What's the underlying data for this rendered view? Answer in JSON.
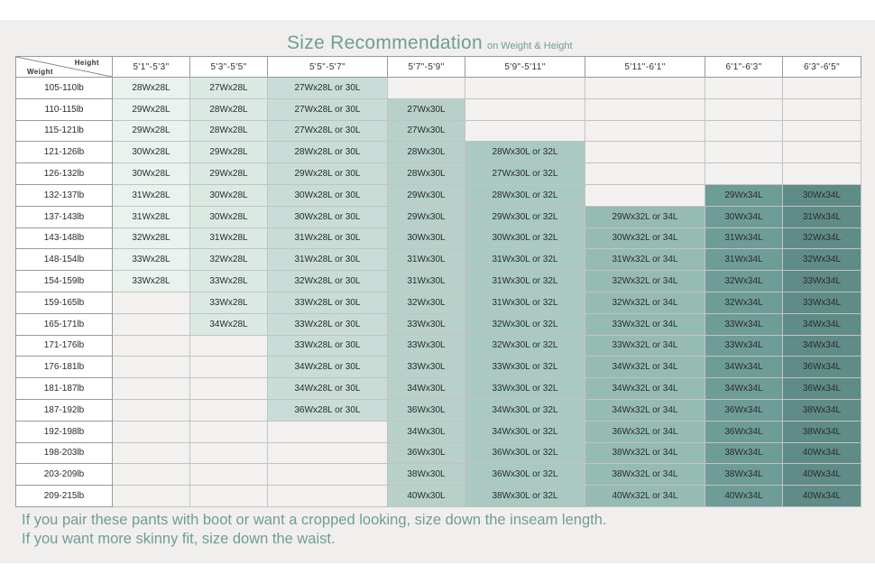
{
  "title": "Size Recommendation",
  "subtitle": "on Weight & Height",
  "corner": {
    "height_label": "Height",
    "weight_label": "Weight"
  },
  "heights": [
    "5'1\"-5'3\"",
    "5'3\"-5'5\"",
    "5'5\"-5'7\"",
    "5'7\"-5'9\"",
    "5'9\"-5'11\"",
    "5'11\"-6'1\"",
    "6'1\"-6'3\"",
    "6'3\"-6'5\""
  ],
  "rows": [
    {
      "weight": "105-110lb",
      "sizes": [
        "28Wx28L",
        "27Wx28L",
        "27Wx28L or 30L",
        "",
        "",
        "",
        "",
        ""
      ]
    },
    {
      "weight": "110-115lb",
      "sizes": [
        "29Wx28L",
        "28Wx28L",
        "27Wx28L or 30L",
        "27Wx30L",
        "",
        "",
        "",
        ""
      ]
    },
    {
      "weight": "115-121lb",
      "sizes": [
        "29Wx28L",
        "28Wx28L",
        "27Wx28L or 30L",
        "27Wx30L",
        "",
        "",
        "",
        ""
      ]
    },
    {
      "weight": "121-126lb",
      "sizes": [
        "30Wx28L",
        "29Wx28L",
        "28Wx28L or 30L",
        "28Wx30L",
        "28Wx30L or 32L",
        "",
        "",
        ""
      ]
    },
    {
      "weight": "126-132lb",
      "sizes": [
        "30Wx28L",
        "29Wx28L",
        "29Wx28L or 30L",
        "28Wx30L",
        "27Wx30L or 32L",
        "",
        "",
        ""
      ]
    },
    {
      "weight": "132-137lb",
      "sizes": [
        "31Wx28L",
        "30Wx28L",
        "30Wx28L or 30L",
        "29Wx30L",
        "28Wx30L or 32L",
        "",
        "29Wx34L",
        "30Wx34L"
      ]
    },
    {
      "weight": "137-143lb",
      "sizes": [
        "31Wx28L",
        "30Wx28L",
        "30Wx28L or 30L",
        "29Wx30L",
        "29Wx30L or 32L",
        "29Wx32L or 34L",
        "30Wx34L",
        "31Wx34L"
      ]
    },
    {
      "weight": "143-148lb",
      "sizes": [
        "32Wx28L",
        "31Wx28L",
        "31Wx28L or 30L",
        "30Wx30L",
        "30Wx30L or 32L",
        "30Wx32L or 34L",
        "31Wx34L",
        "32Wx34L"
      ]
    },
    {
      "weight": "148-154lb",
      "sizes": [
        "33Wx28L",
        "32Wx28L",
        "31Wx28L or 30L",
        "31Wx30L",
        "31Wx30L or 32L",
        "31Wx32L or 34L",
        "31Wx34L",
        "32Wx34L"
      ]
    },
    {
      "weight": "154-159lb",
      "sizes": [
        "33Wx28L",
        "33Wx28L",
        "32Wx28L or 30L",
        "31Wx30L",
        "31Wx30L or 32L",
        "32Wx32L or 34L",
        "32Wx34L",
        "33Wx34L"
      ]
    },
    {
      "weight": "159-165lb",
      "sizes": [
        "",
        "33Wx28L",
        "33Wx28L or 30L",
        "32Wx30L",
        "31Wx30L or 32L",
        "32Wx32L or 34L",
        "32Wx34L",
        "33Wx34L"
      ]
    },
    {
      "weight": "165-171lb",
      "sizes": [
        "",
        "34Wx28L",
        "33Wx28L or 30L",
        "33Wx30L",
        "32Wx30L or 32L",
        "33Wx32L or 34L",
        "33Wx34L",
        "34Wx34L"
      ]
    },
    {
      "weight": "171-176lb",
      "sizes": [
        "",
        "",
        "33Wx28L or 30L",
        "33Wx30L",
        "32Wx30L or 32L",
        "33Wx32L or 34L",
        "33Wx34L",
        "34Wx34L"
      ]
    },
    {
      "weight": "176-181lb",
      "sizes": [
        "",
        "",
        "34Wx28L or 30L",
        "33Wx30L",
        "33Wx30L or 32L",
        "34Wx32L or 34L",
        "34Wx34L",
        "36Wx34L"
      ]
    },
    {
      "weight": "181-187lb",
      "sizes": [
        "",
        "",
        "34Wx28L or 30L",
        "34Wx30L",
        "33Wx30L or 32L",
        "34Wx32L or 34L",
        "34Wx34L",
        "36Wx34L"
      ]
    },
    {
      "weight": "187-192lb",
      "sizes": [
        "",
        "",
        "36Wx28L or 30L",
        "36Wx30L",
        "34Wx30L or 32L",
        "34Wx32L or 34L",
        "36Wx34L",
        "38Wx34L"
      ]
    },
    {
      "weight": "192-198lb",
      "sizes": [
        "",
        "",
        "",
        "34Wx30L",
        "34Wx30L or 32L",
        "36Wx32L or 34L",
        "36Wx34L",
        "38Wx34L"
      ]
    },
    {
      "weight": "198-203lb",
      "sizes": [
        "",
        "",
        "",
        "36Wx30L",
        "36Wx30L or 32L",
        "38Wx32L or 34L",
        "38Wx34L",
        "40Wx34L"
      ]
    },
    {
      "weight": "203-209lb",
      "sizes": [
        "",
        "",
        "",
        "38Wx30L",
        "36Wx30L or 32L",
        "38Wx32L or 34L",
        "38Wx34L",
        "40Wx34L"
      ]
    },
    {
      "weight": "209-215lb",
      "sizes": [
        "",
        "",
        "",
        "40Wx30L",
        "38Wx30L or 32L",
        "40Wx32L or 34L",
        "40Wx34L",
        "40Wx34L"
      ]
    }
  ],
  "notes": [
    "If you pair these pants with boot or want a cropped looking, size down the inseam length.",
    "If you want more skinny fit, size down the waist."
  ]
}
